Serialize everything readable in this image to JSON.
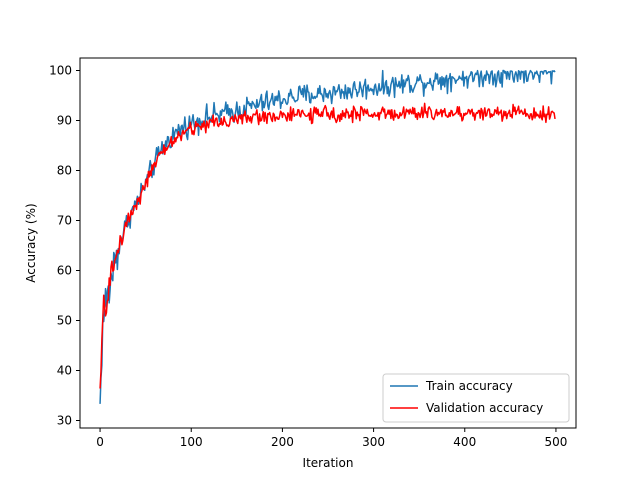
{
  "chart_data": {
    "type": "line",
    "title": "",
    "xlabel": "Iteration",
    "ylabel": "Accuracy (%)",
    "xlim": [
      -22,
      522
    ],
    "ylim": [
      28.5,
      102.5
    ],
    "xticks": [
      0,
      100,
      200,
      300,
      400,
      500
    ],
    "yticks": [
      30,
      40,
      50,
      60,
      70,
      80,
      90,
      100
    ],
    "grid": false,
    "legend_position": "lower-right",
    "x_key": [
      0,
      2,
      4,
      6,
      8,
      10,
      15,
      20,
      30,
      40,
      50,
      60,
      70,
      80,
      90,
      100,
      120,
      140,
      160,
      180,
      200,
      220,
      240,
      260,
      280,
      300,
      320,
      340,
      360,
      380,
      400,
      420,
      440,
      460,
      480,
      500
    ],
    "series": [
      {
        "name": "Train accuracy",
        "color": "#1f77b4",
        "y_key": [
          32.5,
          45,
          51,
          53.5,
          54,
          56,
          61,
          64.5,
          70,
          73.5,
          77.5,
          81.5,
          85,
          87,
          88.5,
          89.5,
          90.8,
          91.5,
          92.5,
          93.5,
          94.3,
          95,
          95.3,
          95.7,
          96.1,
          96.7,
          97,
          97.5,
          97.9,
          98.3,
          98.7,
          99,
          99.2,
          99.4,
          99.5,
          99.6
        ],
        "noise": 1.1
      },
      {
        "name": "Validation accuracy",
        "color": "#ff0000",
        "y_key": [
          34,
          46,
          51.5,
          53.5,
          54.5,
          56.5,
          61,
          64.5,
          70,
          73.5,
          77.5,
          81,
          84,
          86,
          87.3,
          88.3,
          89.5,
          90,
          90.5,
          90.8,
          91,
          91.1,
          91.2,
          91.3,
          91.3,
          91.4,
          91.4,
          91.4,
          91.5,
          91.5,
          91.5,
          91.5,
          91.5,
          91.5,
          91.5,
          91.4
        ],
        "noise": 0.75
      }
    ],
    "n_points": 500
  }
}
